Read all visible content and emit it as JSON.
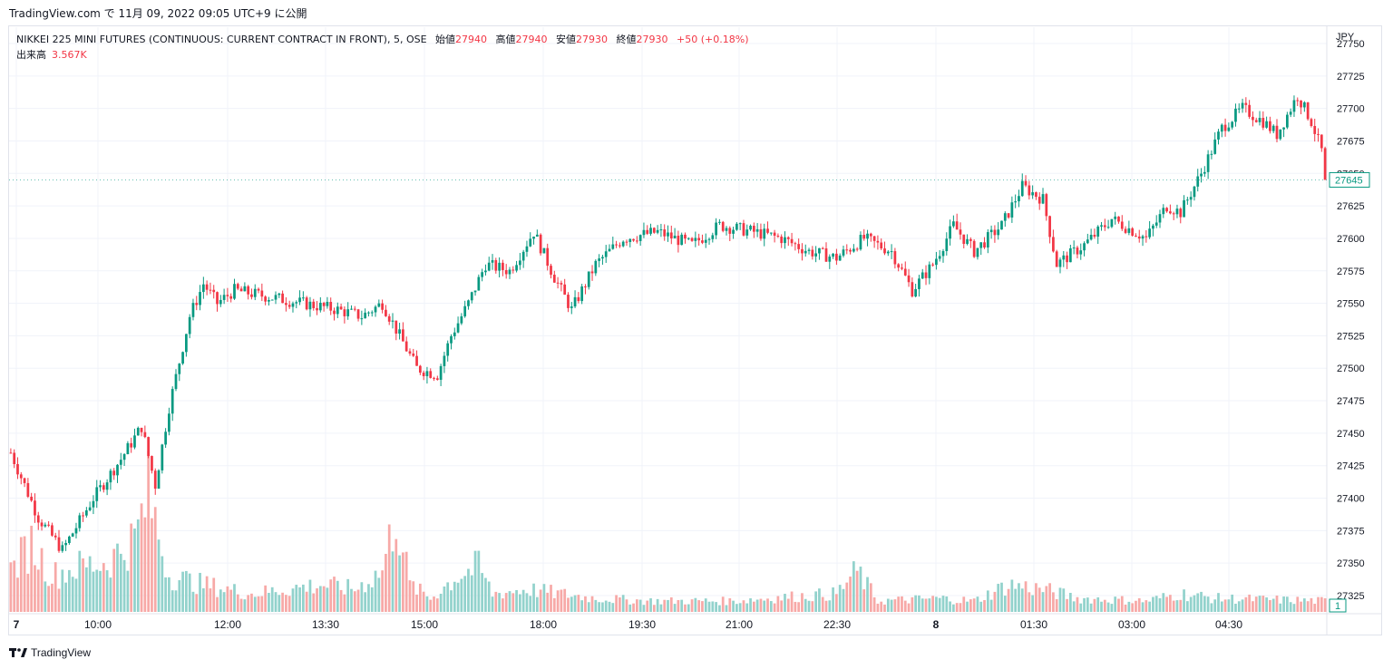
{
  "header": {
    "caption": "TradingView.com で 11月 09, 2022 09:05 UTC+9 に公開"
  },
  "legend": {
    "symbol": "NIKKEI 225 MINI FUTURES (CONTINUOUS: CURRENT CONTRACT IN FRONT), 5, OSE",
    "open_label": "始値",
    "open_value": "27940",
    "high_label": "高値",
    "high_value": "27940",
    "low_label": "安値",
    "low_value": "27930",
    "close_label": "終値",
    "close_value": "27930",
    "change": "+50 (+0.18%)"
  },
  "volume_legend": {
    "label": "出来高",
    "value": "3.567K"
  },
  "price_axis": {
    "currency": "JPY",
    "last_price_badge": "27645",
    "volume_badge": "1"
  },
  "footer": {
    "brand": "TradingView"
  },
  "colors": {
    "up": "#089981",
    "down": "#f23645",
    "up_volume": "#92d2cc",
    "down_volume": "#f7a9a7",
    "grid": "#f0f3fa"
  },
  "chart_data": {
    "type": "candlestick",
    "y_ticks": [
      27325,
      27350,
      27375,
      27400,
      27425,
      27450,
      27475,
      27500,
      27525,
      27550,
      27575,
      27600,
      27625,
      27650,
      27675,
      27700,
      27725,
      27750
    ],
    "x_ticks": [
      "7",
      "10:00",
      "12:00",
      "13:30",
      "15:00",
      "18:00",
      "19:30",
      "21:00",
      "22:30",
      "8",
      "01:30",
      "03:00",
      "04:30"
    ],
    "last_price": 27645,
    "price_path": [
      [
        0,
        27435
      ],
      [
        8,
        27385
      ],
      [
        15,
        27360
      ],
      [
        24,
        27400
      ],
      [
        32,
        27430
      ],
      [
        38,
        27455
      ],
      [
        42,
        27410
      ],
      [
        46,
        27470
      ],
      [
        52,
        27540
      ],
      [
        56,
        27565
      ],
      [
        60,
        27550
      ],
      [
        65,
        27560
      ],
      [
        75,
        27555
      ],
      [
        85,
        27550
      ],
      [
        95,
        27545
      ],
      [
        102,
        27540
      ],
      [
        108,
        27550
      ],
      [
        113,
        27525
      ],
      [
        118,
        27500
      ],
      [
        124,
        27495
      ],
      [
        128,
        27525
      ],
      [
        133,
        27550
      ],
      [
        138,
        27580
      ],
      [
        145,
        27575
      ],
      [
        152,
        27605
      ],
      [
        158,
        27570
      ],
      [
        163,
        27545
      ],
      [
        170,
        27580
      ],
      [
        178,
        27600
      ],
      [
        188,
        27605
      ],
      [
        198,
        27595
      ],
      [
        206,
        27610
      ],
      [
        216,
        27605
      ],
      [
        224,
        27600
      ],
      [
        232,
        27590
      ],
      [
        240,
        27585
      ],
      [
        248,
        27600
      ],
      [
        256,
        27590
      ],
      [
        262,
        27560
      ],
      [
        268,
        27580
      ],
      [
        274,
        27610
      ],
      [
        280,
        27590
      ],
      [
        288,
        27610
      ],
      [
        294,
        27640
      ],
      [
        300,
        27630
      ],
      [
        304,
        27580
      ],
      [
        312,
        27595
      ],
      [
        320,
        27615
      ],
      [
        330,
        27600
      ],
      [
        336,
        27625
      ],
      [
        340,
        27620
      ],
      [
        346,
        27650
      ],
      [
        352,
        27685
      ],
      [
        358,
        27700
      ],
      [
        364,
        27690
      ],
      [
        368,
        27680
      ],
      [
        374,
        27710
      ],
      [
        378,
        27690
      ],
      [
        382,
        27660
      ]
    ],
    "volume_path": [
      [
        0,
        45
      ],
      [
        6,
        75
      ],
      [
        12,
        40
      ],
      [
        20,
        50
      ],
      [
        28,
        55
      ],
      [
        36,
        80
      ],
      [
        40,
        130
      ],
      [
        46,
        40
      ],
      [
        56,
        30
      ],
      [
        70,
        20
      ],
      [
        80,
        25
      ],
      [
        90,
        30
      ],
      [
        100,
        25
      ],
      [
        108,
        45
      ],
      [
        112,
        110
      ],
      [
        116,
        30
      ],
      [
        122,
        15
      ],
      [
        130,
        40
      ],
      [
        136,
        50
      ],
      [
        140,
        20
      ],
      [
        150,
        25
      ],
      [
        170,
        15
      ],
      [
        186,
        12
      ],
      [
        210,
        12
      ],
      [
        220,
        15
      ],
      [
        240,
        20
      ],
      [
        246,
        45
      ],
      [
        252,
        12
      ],
      [
        270,
        15
      ],
      [
        280,
        12
      ],
      [
        290,
        30
      ],
      [
        300,
        25
      ],
      [
        310,
        15
      ],
      [
        330,
        12
      ],
      [
        340,
        20
      ],
      [
        350,
        15
      ],
      [
        382,
        12
      ]
    ]
  }
}
